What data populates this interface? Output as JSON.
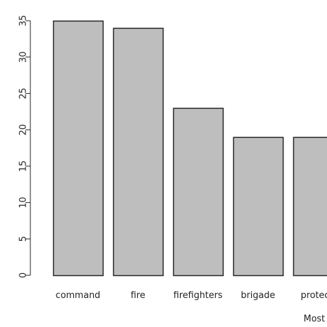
{
  "chart_data": {
    "type": "bar",
    "title": "",
    "xlabel": "Most",
    "ylabel": "",
    "ylim": [
      0,
      35
    ],
    "y_ticks": [
      0,
      5,
      10,
      15,
      20,
      25,
      30,
      35
    ],
    "categories": [
      "command",
      "fire",
      "firefighters",
      "brigade",
      "protecti"
    ],
    "values": [
      35,
      34,
      23,
      19,
      19
    ],
    "grid": false,
    "bar_fill": "#bebebe",
    "bar_stroke": "#222222",
    "axis_color": "#222222"
  }
}
